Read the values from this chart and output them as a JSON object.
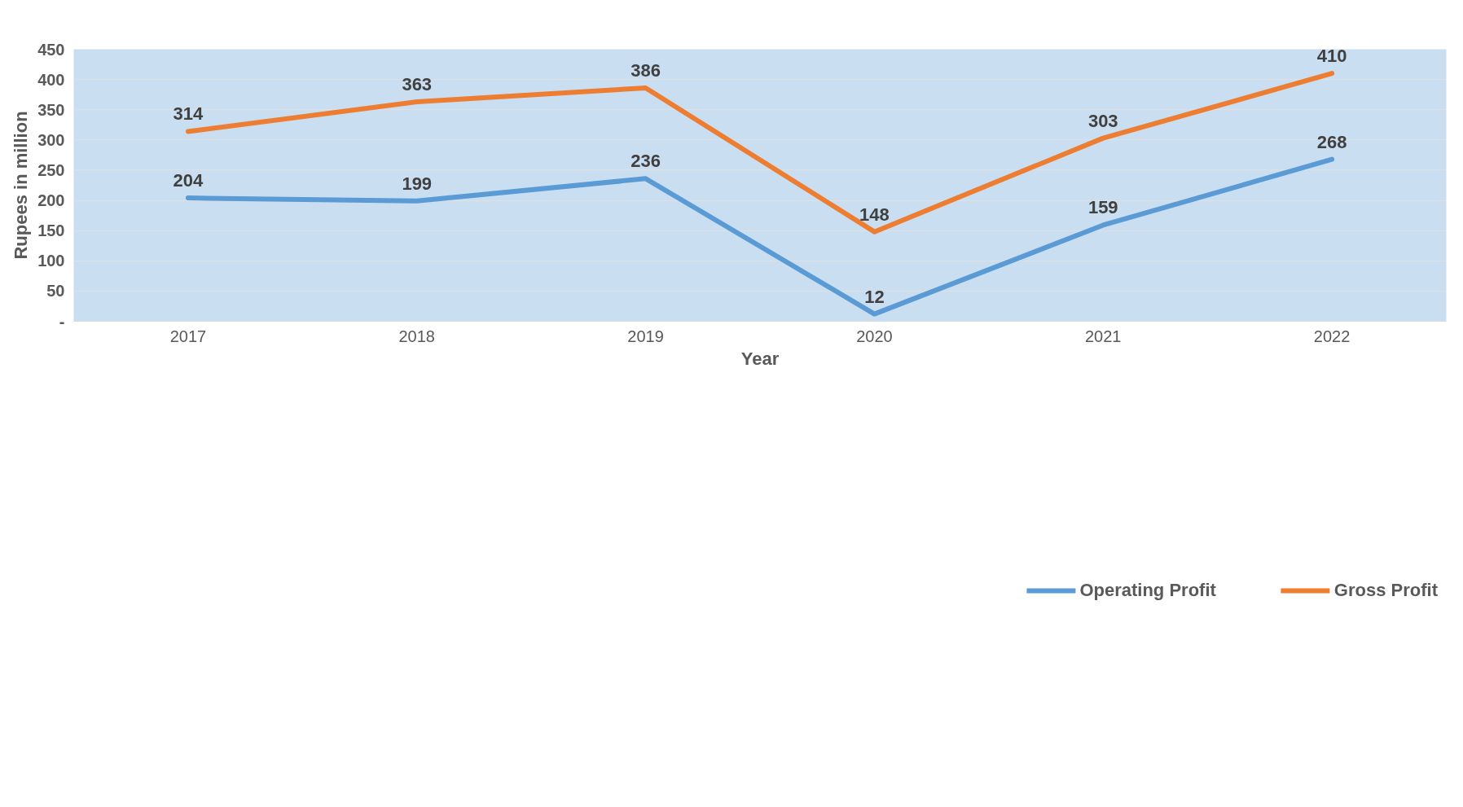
{
  "chart_data": {
    "type": "line",
    "categories": [
      "2017",
      "2018",
      "2019",
      "2020",
      "2021",
      "2022"
    ],
    "series": [
      {
        "name": "Operating Profit",
        "color": "#5b9bd5",
        "values": [
          204,
          199,
          236,
          12,
          159,
          268
        ]
      },
      {
        "name": "Gross Profit",
        "color": "#ed7d31",
        "values": [
          314,
          363,
          386,
          148,
          303,
          410
        ]
      }
    ],
    "xlabel": "Year",
    "ylabel": "Rupees in million",
    "ylim": [
      0,
      450
    ],
    "yticks": [
      {
        "value": 0,
        "label": "-"
      },
      50,
      100,
      150,
      200,
      250,
      300,
      350,
      400,
      450
    ],
    "grid": "y",
    "legend": "bottom",
    "data_labels": true,
    "marker": "none",
    "line_style": "solid"
  }
}
